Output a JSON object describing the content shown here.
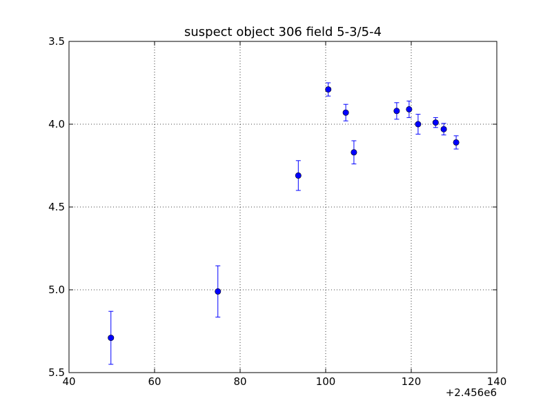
{
  "chart_data": {
    "type": "scatter",
    "title": "suspect object 306 field 5-3/5-4",
    "xlabel": "",
    "ylabel": "",
    "x_offset_label": "+2.456e6",
    "xlim": [
      40,
      140
    ],
    "ylim": [
      5.5,
      3.5
    ],
    "y_inverted": true,
    "grid": true,
    "x_ticks": [
      40,
      60,
      80,
      100,
      120,
      140
    ],
    "x_tick_labels": [
      "40",
      "60",
      "80",
      "100",
      "120",
      "140"
    ],
    "y_ticks": [
      3.5,
      4.0,
      4.5,
      5.0,
      5.5
    ],
    "y_tick_labels": [
      "3.5",
      "4.0",
      "4.5",
      "5.0",
      "5.5"
    ],
    "series": [
      {
        "color": "#0000ff",
        "points": [
          {
            "x": 49.8,
            "y": 5.29,
            "err": 0.16
          },
          {
            "x": 74.8,
            "y": 5.01,
            "err": 0.155
          },
          {
            "x": 93.6,
            "y": 4.31,
            "err": 0.09
          },
          {
            "x": 100.6,
            "y": 3.79,
            "err": 0.04
          },
          {
            "x": 104.7,
            "y": 3.93,
            "err": 0.05
          },
          {
            "x": 106.6,
            "y": 4.17,
            "err": 0.07
          },
          {
            "x": 116.6,
            "y": 3.92,
            "err": 0.05
          },
          {
            "x": 119.5,
            "y": 3.91,
            "err": 0.05
          },
          {
            "x": 121.6,
            "y": 4.0,
            "err": 0.06
          },
          {
            "x": 125.7,
            "y": 3.99,
            "err": 0.03
          },
          {
            "x": 127.6,
            "y": 4.03,
            "err": 0.035
          },
          {
            "x": 130.5,
            "y": 4.11,
            "err": 0.04
          }
        ]
      }
    ]
  }
}
